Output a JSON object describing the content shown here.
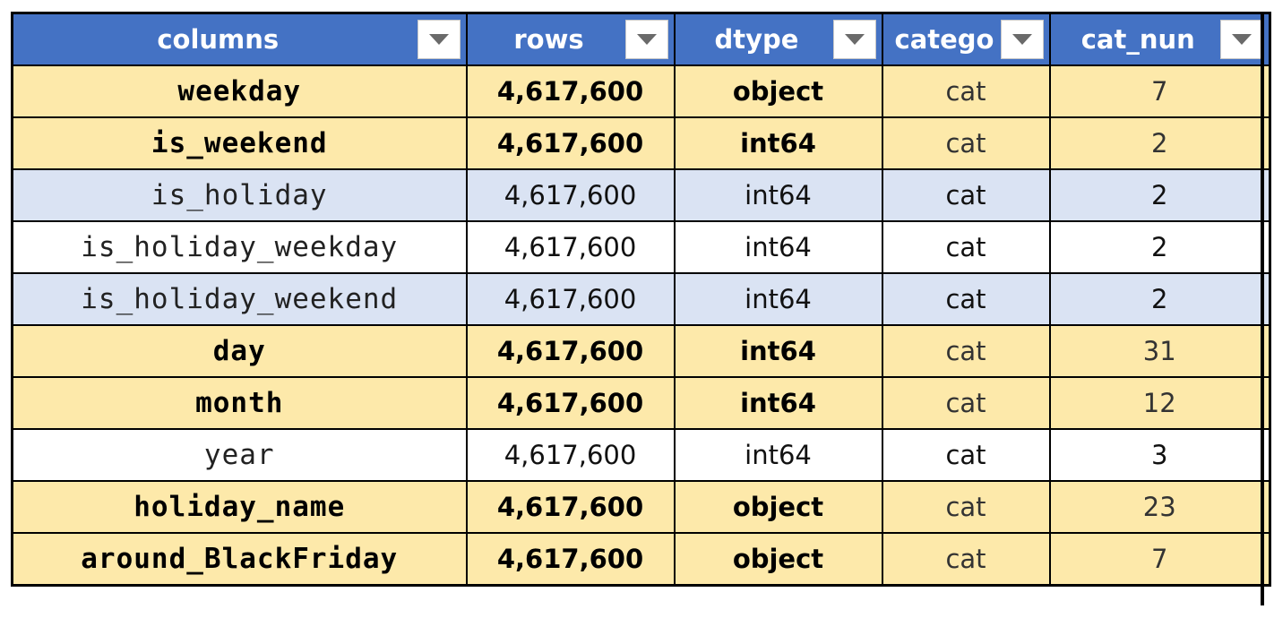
{
  "colors": {
    "header_bg": "#4472c4",
    "tan": "#fde9aa",
    "blue": "#dae3f3",
    "white": "#ffffff"
  },
  "headers": [
    "columns",
    "rows",
    "dtype",
    "catego",
    "cat_nun"
  ],
  "rows": [
    {
      "name": "weekday",
      "rows": "4,617,600",
      "dtype": "object",
      "category": "cat",
      "cat_num": "7",
      "fill": "tan",
      "bold": true
    },
    {
      "name": "is_weekend",
      "rows": "4,617,600",
      "dtype": "int64",
      "category": "cat",
      "cat_num": "2",
      "fill": "tan",
      "bold": true
    },
    {
      "name": "is_holiday",
      "rows": "4,617,600",
      "dtype": "int64",
      "category": "cat",
      "cat_num": "2",
      "fill": "blue",
      "bold": false
    },
    {
      "name": "is_holiday_weekday",
      "rows": "4,617,600",
      "dtype": "int64",
      "category": "cat",
      "cat_num": "2",
      "fill": "white",
      "bold": false
    },
    {
      "name": "is_holiday_weekend",
      "rows": "4,617,600",
      "dtype": "int64",
      "category": "cat",
      "cat_num": "2",
      "fill": "blue",
      "bold": false
    },
    {
      "name": "day",
      "rows": "4,617,600",
      "dtype": "int64",
      "category": "cat",
      "cat_num": "31",
      "fill": "tan",
      "bold": true
    },
    {
      "name": "month",
      "rows": "4,617,600",
      "dtype": "int64",
      "category": "cat",
      "cat_num": "12",
      "fill": "tan",
      "bold": true
    },
    {
      "name": "year",
      "rows": "4,617,600",
      "dtype": "int64",
      "category": "cat",
      "cat_num": "3",
      "fill": "white",
      "bold": false
    },
    {
      "name": "holiday_name",
      "rows": "4,617,600",
      "dtype": "object",
      "category": "cat",
      "cat_num": "23",
      "fill": "tan",
      "bold": true
    },
    {
      "name": "around_BlackFriday",
      "rows": "4,617,600",
      "dtype": "object",
      "category": "cat",
      "cat_num": "7",
      "fill": "tan",
      "bold": true
    }
  ]
}
